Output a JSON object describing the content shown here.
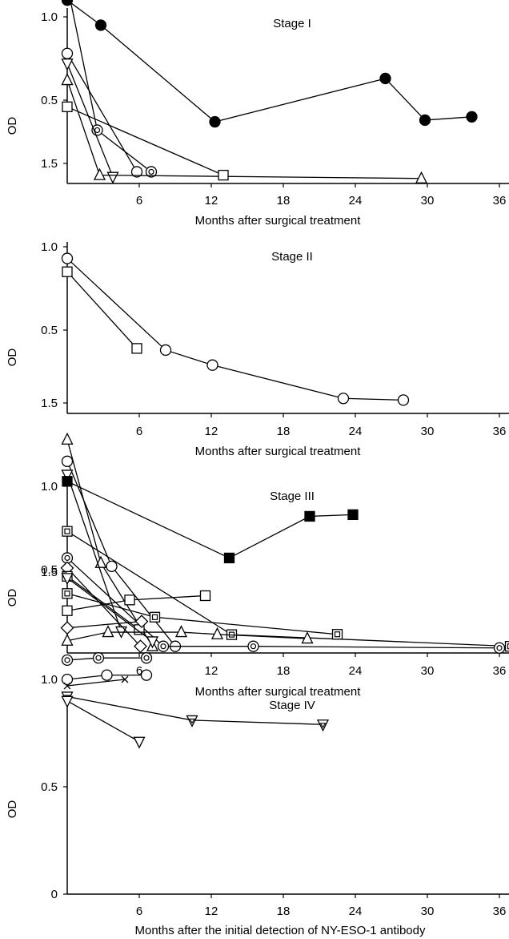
{
  "chart_data": [
    {
      "type": "line",
      "title": "Stage I",
      "xlabel": "Months after surgical treatment",
      "ylabel": "OD",
      "xlim": [
        0,
        37
      ],
      "ylim": [
        0,
        1.5
      ],
      "xticks": [
        6,
        12,
        18,
        24,
        30,
        36
      ],
      "yticks": [
        0.5,
        1.0,
        1.5
      ],
      "ytick_labels": [
        "0.5",
        "1.0",
        "1.5"
      ],
      "series": [
        {
          "marker": "filled-circle",
          "x": [
            0,
            2.8,
            12.3,
            26.5,
            29.8,
            33.7
          ],
          "y": [
            1.1,
            0.95,
            0.37,
            0.63,
            0.38,
            0.4
          ]
        },
        {
          "marker": "circle-dot",
          "x": [
            0,
            2.5,
            7
          ],
          "y": [
            1.19,
            0.32,
            0.07
          ]
        },
        {
          "marker": "circle",
          "x": [
            0,
            5.8
          ],
          "y": [
            0.78,
            0.07
          ]
        },
        {
          "marker": "triangle-down",
          "x": [
            0,
            3.8
          ],
          "y": [
            0.72,
            0.04
          ]
        },
        {
          "marker": "triangle-up",
          "x": [
            0,
            2.7,
            29.5
          ],
          "y": [
            0.62,
            0.05,
            0.03
          ]
        },
        {
          "marker": "square",
          "x": [
            0,
            13
          ],
          "y": [
            0.46,
            0.05
          ]
        }
      ]
    },
    {
      "type": "line",
      "title": "Stage II",
      "xlabel": "Months after surgical treatment",
      "ylabel": "OD",
      "xlim": [
        0,
        37
      ],
      "ylim": [
        0,
        1.5
      ],
      "xticks": [
        6,
        12,
        18,
        24,
        30,
        36
      ],
      "yticks": [
        0.5,
        1.0,
        1.5
      ],
      "ytick_labels": [
        "0.5",
        "1.0",
        "1.5"
      ],
      "series": [
        {
          "marker": "circle",
          "x": [
            0,
            8.2,
            12.1,
            23,
            28
          ],
          "y": [
            0.93,
            0.38,
            0.29,
            0.09,
            0.08
          ]
        },
        {
          "marker": "square",
          "x": [
            0,
            5.8
          ],
          "y": [
            0.85,
            0.39
          ]
        }
      ]
    },
    {
      "type": "line",
      "title": "Stage III",
      "xlabel": "Months after surgical treatment",
      "ylabel": "OD",
      "xlim": [
        0,
        37
      ],
      "ylim": [
        0,
        1.5
      ],
      "xticks": [
        6,
        12,
        18,
        24,
        30,
        36
      ],
      "yticks": [
        0.5,
        1.0,
        1.5
      ],
      "ytick_labels": [
        "0.5",
        "1.0",
        "1.5"
      ],
      "series": [
        {
          "marker": "triangle-up",
          "x": [
            0,
            2.8,
            7.1
          ],
          "y": [
            1.28,
            0.54,
            0.04
          ]
        },
        {
          "marker": "circle",
          "x": [
            0,
            3.7,
            9
          ],
          "y": [
            1.15,
            0.52,
            0.04
          ]
        },
        {
          "marker": "triangle-down",
          "x": [
            0,
            4.5
          ],
          "y": [
            1.07,
            0.13
          ]
        },
        {
          "marker": "filled-square",
          "x": [
            0,
            13.5,
            20.2,
            23.8
          ],
          "y": [
            1.03,
            0.57,
            0.82,
            0.83
          ]
        },
        {
          "marker": "square-dot",
          "x": [
            0,
            13.7,
            36.9
          ],
          "y": [
            0.73,
            0.11,
            0.04
          ]
        },
        {
          "marker": "circle-dot",
          "x": [
            0,
            8,
            15.5,
            36
          ],
          "y": [
            0.57,
            0.04,
            0.04,
            0.03
          ]
        },
        {
          "marker": "diamond",
          "x": [
            0,
            6.1
          ],
          "y": [
            0.51,
            0.04
          ]
        },
        {
          "marker": "square",
          "x": [
            0,
            6
          ],
          "y": [
            0.46,
            0.14
          ]
        },
        {
          "marker": "triangle-down",
          "x": [
            0,
            7.1
          ],
          "y": [
            0.45,
            0.07
          ]
        }
      ]
    },
    {
      "type": "line",
      "title": "Stage IV",
      "xlabel": "Months after the initial detection of NY-ESO-1 antibody",
      "ylabel": "OD",
      "xlim": [
        0,
        37
      ],
      "ylim": [
        0,
        1.6
      ],
      "xticks": [
        6,
        12,
        18,
        24,
        30,
        36
      ],
      "yticks": [
        0,
        0.5,
        1.0,
        1.5
      ],
      "ytick_labels": [
        "0",
        "0.5",
        "1.0",
        "1.5"
      ],
      "series": [
        {
          "marker": "square-dot",
          "x": [
            0,
            7.3,
            22.5
          ],
          "y": [
            1.4,
            1.29,
            1.21
          ]
        },
        {
          "marker": "square",
          "x": [
            0,
            5.2,
            11.5
          ],
          "y": [
            1.32,
            1.37,
            1.39
          ]
        },
        {
          "marker": "diamond",
          "x": [
            0,
            6.2
          ],
          "y": [
            1.24,
            1.27
          ]
        },
        {
          "marker": "triangle-up",
          "x": [
            0,
            3.4,
            9.5,
            12.5,
            20
          ],
          "y": [
            1.18,
            1.22,
            1.22,
            1.21,
            1.19
          ]
        },
        {
          "marker": "circle-dot",
          "x": [
            0,
            2.6,
            6.6
          ],
          "y": [
            1.09,
            1.1,
            1.1
          ]
        },
        {
          "marker": "circle",
          "x": [
            0,
            3.3,
            6.6
          ],
          "y": [
            1.0,
            1.02,
            1.02
          ]
        },
        {
          "marker": "cross",
          "x": [
            0,
            4.8
          ],
          "y": [
            0.97,
            1.0
          ]
        },
        {
          "marker": "triangle-down-dot",
          "x": [
            0,
            10.4,
            21.3
          ],
          "y": [
            0.92,
            0.81,
            0.79
          ]
        },
        {
          "marker": "triangle-down",
          "x": [
            0,
            6
          ],
          "y": [
            0.9,
            0.71
          ]
        }
      ]
    }
  ]
}
